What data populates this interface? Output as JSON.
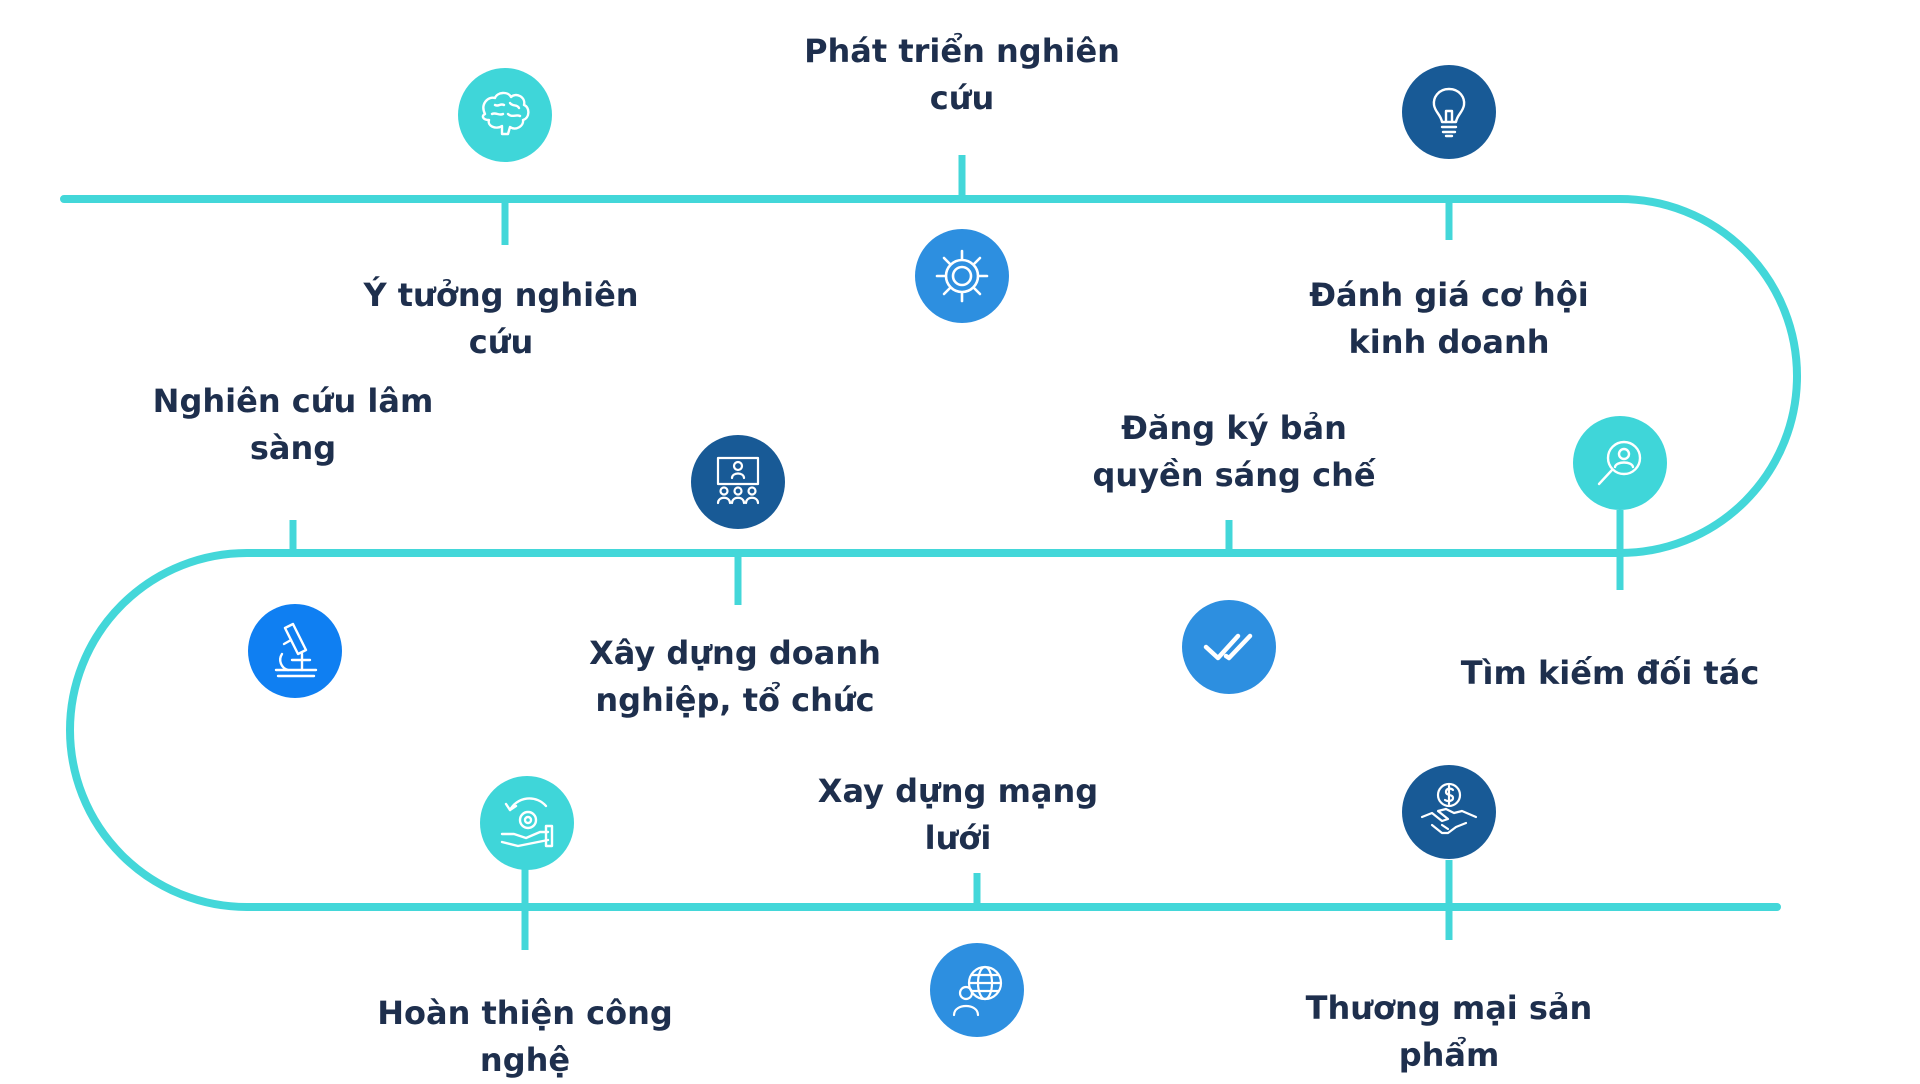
{
  "steps": [
    {
      "label": "Ý tưởng nghiên\ncứu",
      "icon": "brain-icon",
      "color": "#3fd6d9"
    },
    {
      "label": "Phát triển nghiên\ncứu",
      "icon": "gear-icon",
      "color": "#2d8fe0"
    },
    {
      "label": "Đánh giá cơ hội\nkinh doanh",
      "icon": "lightbulb-icon",
      "color": "#185a96"
    },
    {
      "label": "Tìm kiếm đối tác",
      "icon": "magnifier-person-icon",
      "color": "#3fd6d9"
    },
    {
      "label": "Đăng ký bản\nquyền sáng chế",
      "icon": "double-check-icon",
      "color": "#2d8fe0"
    },
    {
      "label": "Xây dựng doanh\nnghiệp,  tổ chức",
      "icon": "presentation-team-icon",
      "color": "#185a96"
    },
    {
      "label": "Nghiên cứu lâm\nsàng",
      "icon": "microscope-icon",
      "color": "#0f7ff2"
    },
    {
      "label": "Hoàn thiện công\nnghệ",
      "icon": "hand-gear-icon",
      "color": "#3fd6d9"
    },
    {
      "label": "Xay dựng mạng\nlưới",
      "icon": "person-globe-icon",
      "color": "#2d8fe0"
    },
    {
      "label": "Thương mại sản\nphẩm",
      "icon": "handshake-dollar-icon",
      "color": "#185a96"
    }
  ],
  "road_color": "#43d7d9"
}
